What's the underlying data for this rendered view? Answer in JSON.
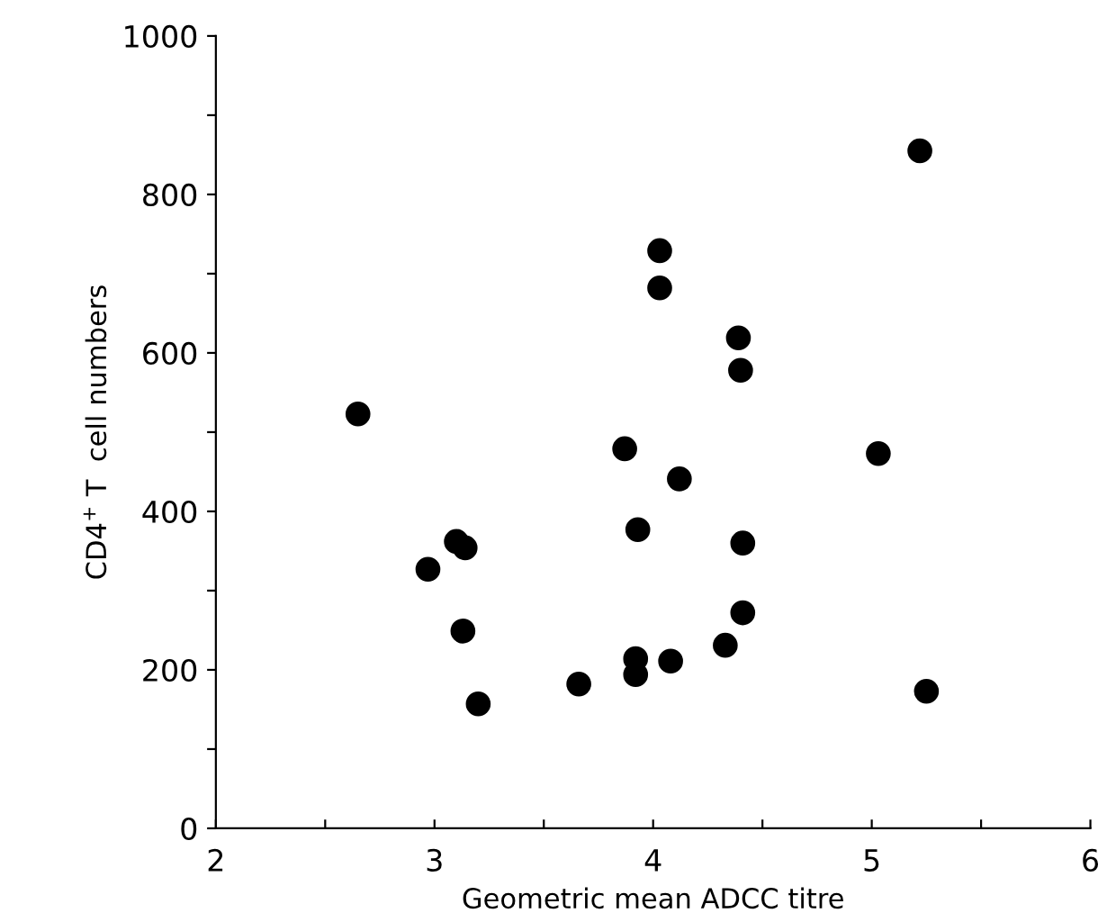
{
  "chart_data": {
    "type": "scatter",
    "xlabel": "Geometric mean ADCC titre",
    "ylabel": "CD4$^{+}$ T  cell numbers",
    "x": [
      5.22,
      4.03,
      4.03,
      4.39,
      4.4,
      2.65,
      3.87,
      5.03,
      4.12,
      3.93,
      4.41,
      3.1,
      3.14,
      2.97,
      3.13,
      4.41,
      4.33,
      3.92,
      3.92,
      4.08,
      3.66,
      3.2,
      5.25
    ],
    "series": [
      {
        "color": "#000000",
        "values": [
          855,
          729,
          682,
          619,
          578,
          523,
          479,
          473,
          441,
          377,
          360,
          362,
          354,
          327,
          249,
          272,
          231,
          214,
          194,
          211,
          182,
          157,
          173
        ]
      }
    ],
    "xlim": [
      2,
      6
    ],
    "ylim": [
      0,
      1000
    ],
    "xticks": [
      2,
      {
        "value": 2.5,
        "label": null
      },
      3,
      {
        "value": 3.5,
        "label": null
      },
      4,
      {
        "value": 4.5,
        "label": null
      },
      5,
      {
        "value": 5.5,
        "label": null
      },
      6
    ],
    "yticks": [
      0,
      {
        "value": 100,
        "label": null
      },
      200,
      {
        "value": 300,
        "label": null
      },
      400,
      {
        "value": 500,
        "label": null
      },
      600,
      {
        "value": 700,
        "label": null
      },
      800,
      {
        "value": 900,
        "label": null
      },
      1000
    ],
    "marker": "circle",
    "grid": false,
    "legend": false
  }
}
